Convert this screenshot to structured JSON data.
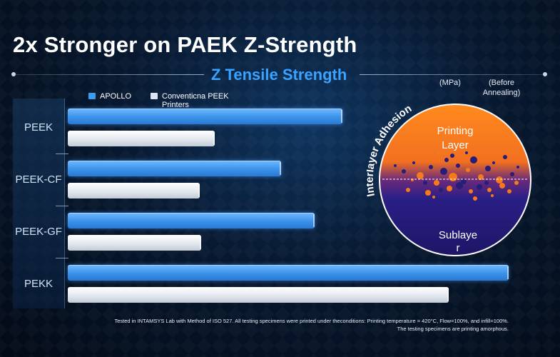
{
  "header": {
    "title": "2x Stronger on PAEK Z-Strength",
    "subtitle": "Z Tensile Strength"
  },
  "units": {
    "mpa": "(MPa)",
    "before_line1": "(Before",
    "before_line2": "Annealing)"
  },
  "colors": {
    "apollo": "#3d9cf0",
    "conventional": "#dfe5ee",
    "subtitle": "#3aa2ff",
    "printing_layer": "#f57a1a",
    "sublayer": "#241d7a"
  },
  "chart_data": {
    "type": "bar",
    "orientation": "horizontal",
    "title": "Z Tensile Strength",
    "categories": [
      "PEEK",
      "PEEK-CF",
      "PEEK-GF",
      "PEKK"
    ],
    "series": [
      {
        "name": "APOLLO",
        "values": [
          1.87,
          1.45,
          1.68,
          3.0
        ]
      },
      {
        "name": "Conventicna PEEK Printers",
        "values": [
          1.0,
          0.9,
          0.91,
          2.59
        ]
      }
    ],
    "xlim": [
      0,
      3.0
    ],
    "axis_values_shown": false,
    "legend_position": "top"
  },
  "legend": {
    "apollo_label": "APOLLO",
    "conventional_label": "Conventicna PEEK Printers"
  },
  "diagram": {
    "arc_title": "Interlayer Adhesion",
    "top_label_1": "Printing",
    "top_label_2": "Layer",
    "bottom_label_1": "Sublaye",
    "bottom_label_2": "r"
  },
  "footnote": {
    "line1": "Tested in INTAMSYS Lab with Method of ISO 527. All testing specimens were printed under theconditions: Printing temperature = 420°C, Flow=100%, and infill=100%.",
    "line2": "The testing specimens are printing amorphous."
  }
}
